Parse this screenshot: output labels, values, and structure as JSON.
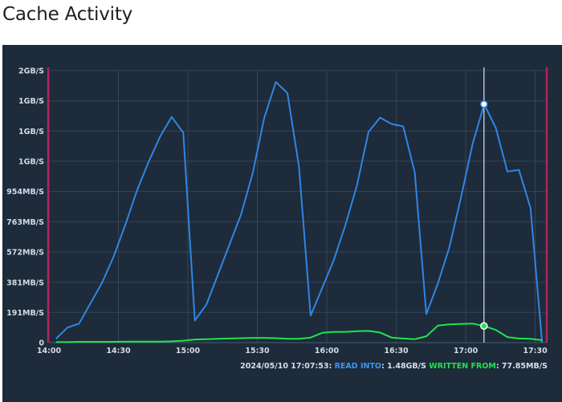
{
  "page": {
    "title": "Cache Activity"
  },
  "colors": {
    "background": "#1d2b3a",
    "read_series": "#2f86e6",
    "written_series": "#1fe54f",
    "marker_line": "#cfd5dc",
    "range_bounds": "#b0245c",
    "grid": "#34465a"
  },
  "readout": {
    "timestamp": "2024/05/10 17:07:53:",
    "read_label": "READ INTO",
    "read_value": ": 1.48GB/S",
    "written_label": "WRITTEN FROM",
    "written_value": ": 77.85MB/S"
  },
  "chart_data": {
    "type": "line",
    "title": "",
    "xlabel": "",
    "ylabel": "",
    "x_unit": "time",
    "x_range": [
      "14:00",
      "17:35"
    ],
    "x_ticks": [
      "14:00",
      "14:30",
      "15:00",
      "15:30",
      "16:00",
      "16:30",
      "17:00",
      "17:30"
    ],
    "y_tick_labels": [
      "0",
      "191MB/S",
      "381MB/S",
      "572MB/S",
      "763MB/S",
      "954MB/S",
      "1GB/S",
      "1GB/S",
      "1GB/S",
      "2GB/S"
    ],
    "y_range_mb_s": [
      0,
      1717
    ],
    "y_tick_values_mb_s": [
      0,
      191,
      381,
      572,
      763,
      954,
      1145,
      1335,
      1526,
      1717
    ],
    "grid": true,
    "legend": "none",
    "marker_time": "17:07:53",
    "series": [
      {
        "name": "READ INTO",
        "x": [
          "14:03",
          "14:08",
          "14:13",
          "14:18",
          "14:23",
          "14:28",
          "14:33",
          "14:38",
          "14:43",
          "14:48",
          "14:53",
          "14:58",
          "15:03",
          "15:08",
          "15:13",
          "15:18",
          "15:23",
          "15:28",
          "15:33",
          "15:38",
          "15:43",
          "15:48",
          "15:53",
          "15:58",
          "16:03",
          "16:08",
          "16:13",
          "16:18",
          "16:23",
          "16:28",
          "16:33",
          "16:38",
          "16:43",
          "16:48",
          "16:53",
          "16:58",
          "17:03",
          "17:08",
          "17:13",
          "17:18",
          "17:23",
          "17:28",
          "17:33"
        ],
        "values": [
          25,
          95,
          120,
          250,
          380,
          545,
          745,
          960,
          1140,
          1300,
          1425,
          1325,
          140,
          240,
          430,
          620,
          810,
          1070,
          1420,
          1645,
          1575,
          1110,
          170,
          345,
          520,
          740,
          990,
          1330,
          1420,
          1380,
          1365,
          1075,
          180,
          375,
          605,
          920,
          1255,
          1505,
          1355,
          1080,
          1090,
          850,
          0
        ]
      },
      {
        "name": "WRITTEN FROM",
        "x": [
          "14:03",
          "14:08",
          "14:13",
          "14:18",
          "14:23",
          "14:28",
          "14:33",
          "14:38",
          "14:43",
          "14:48",
          "14:53",
          "14:58",
          "15:03",
          "15:08",
          "15:13",
          "15:18",
          "15:23",
          "15:28",
          "15:33",
          "15:38",
          "15:43",
          "15:48",
          "15:53",
          "15:58",
          "16:03",
          "16:08",
          "16:13",
          "16:18",
          "16:23",
          "16:28",
          "16:33",
          "16:38",
          "16:43",
          "16:48",
          "16:53",
          "16:58",
          "17:03",
          "17:08",
          "17:13",
          "17:18",
          "17:23",
          "17:28",
          "17:33"
        ],
        "values": [
          3,
          3,
          5,
          5,
          5,
          5,
          6,
          6,
          6,
          6,
          8,
          12,
          20,
          22,
          24,
          26,
          28,
          30,
          30,
          28,
          24,
          24,
          32,
          62,
          68,
          68,
          72,
          74,
          64,
          32,
          26,
          22,
          40,
          108,
          115,
          118,
          120,
          105,
          80,
          35,
          26,
          24,
          15
        ]
      }
    ]
  }
}
